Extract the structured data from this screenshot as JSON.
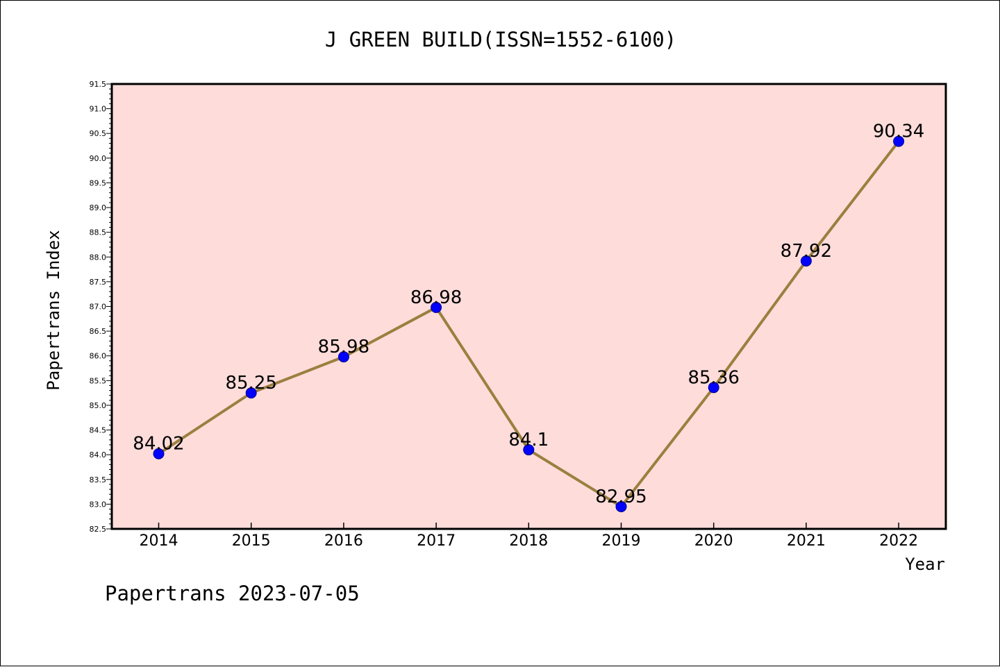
{
  "chart_data": {
    "type": "line",
    "title": "J GREEN BUILD(ISSN=1552-6100)",
    "xlabel": "Year",
    "ylabel": "Papertrans Index",
    "categories": [
      "2014",
      "2015",
      "2016",
      "2017",
      "2018",
      "2019",
      "2020",
      "2021",
      "2022"
    ],
    "values": [
      84.02,
      85.25,
      85.98,
      86.98,
      84.1,
      82.95,
      85.36,
      87.92,
      90.34
    ],
    "data_labels": [
      "84.02",
      "85.25",
      "85.98",
      "86.98",
      "84.1",
      "82.95",
      "85.36",
      "87.92",
      "90.34"
    ],
    "ylim": [
      82.5,
      91.5
    ],
    "y_ticks": [
      "82.5",
      "83.0",
      "83.5",
      "84.0",
      "84.5",
      "85.0",
      "85.5",
      "86.0",
      "86.5",
      "87.0",
      "87.5",
      "88.0",
      "88.5",
      "89.0",
      "89.5",
      "90.0",
      "90.5",
      "91.0",
      "91.5"
    ],
    "grid": false,
    "colors": {
      "plot_background": "#fddcda",
      "line": "#9b7f3e",
      "marker": "#0000ff"
    }
  },
  "footer": "Papertrans 2023-07-05"
}
